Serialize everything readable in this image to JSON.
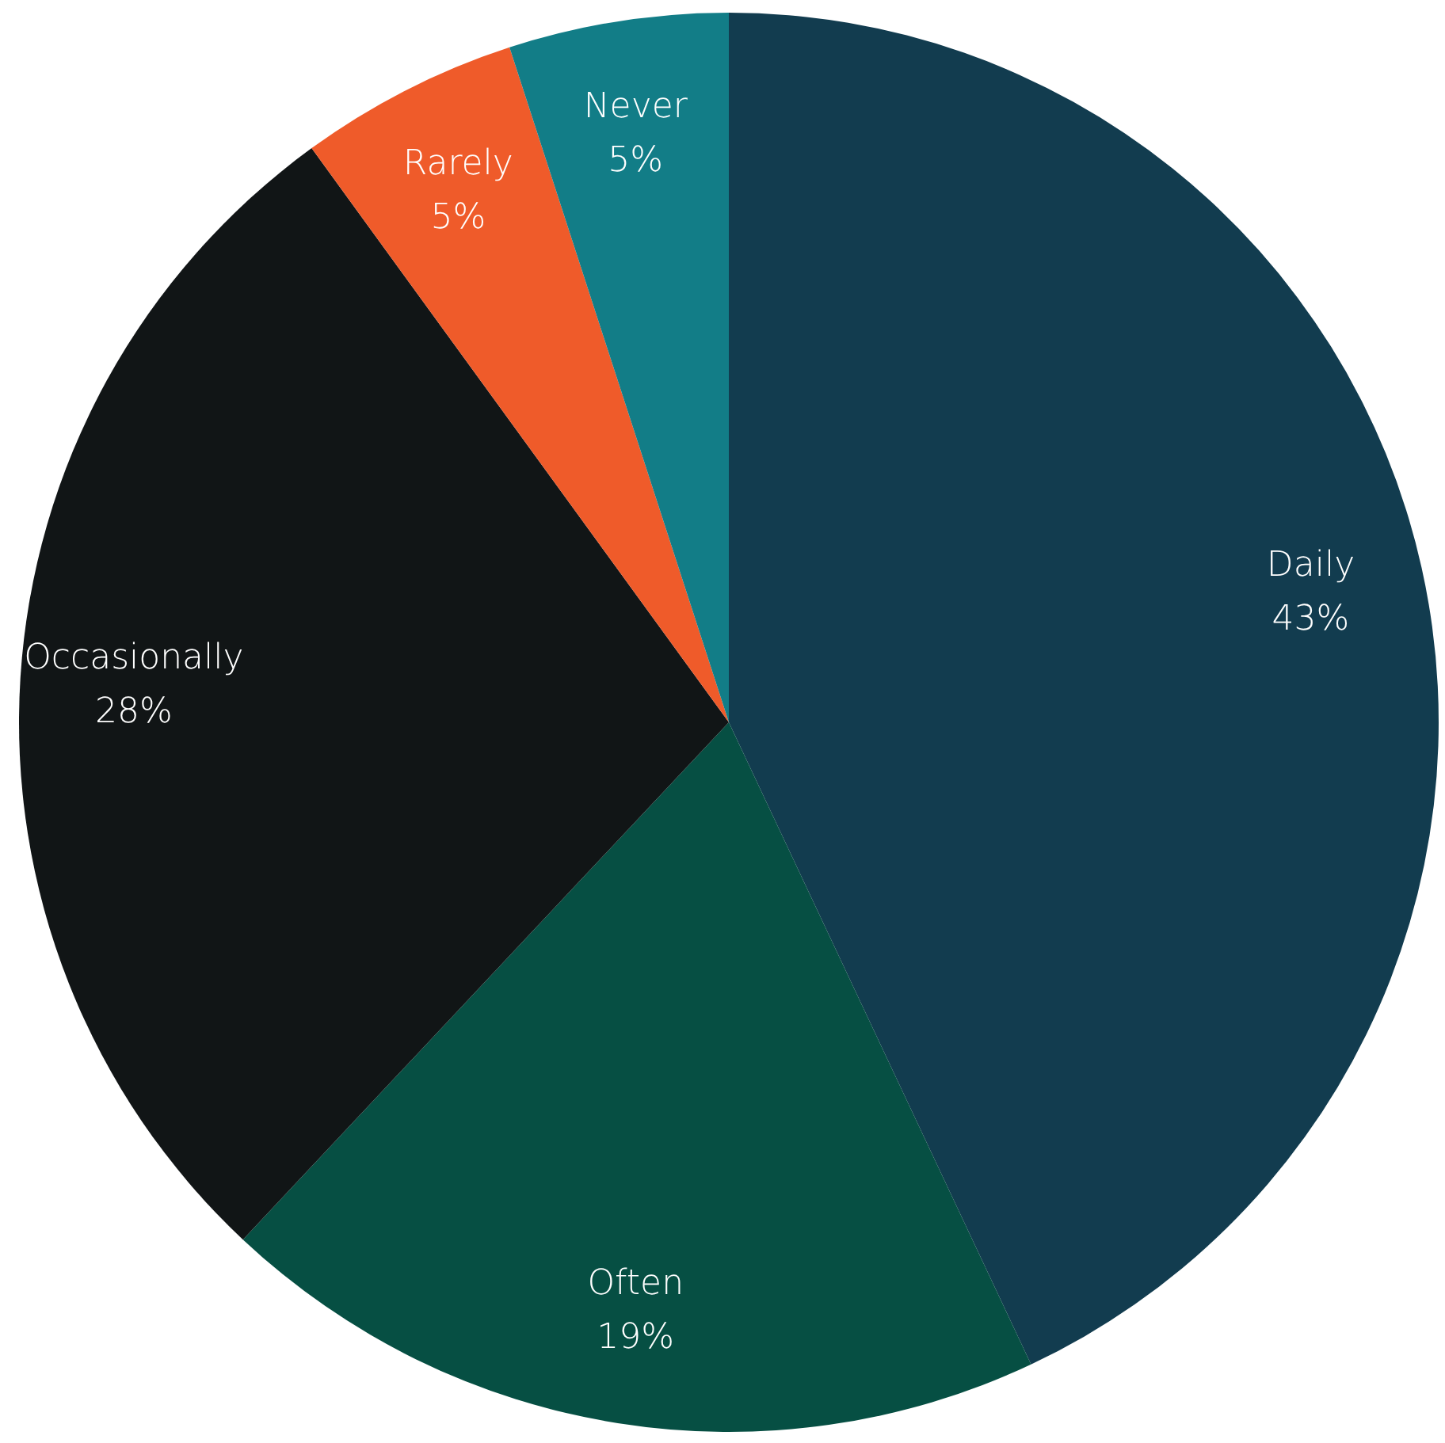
{
  "chart_data": {
    "type": "pie",
    "categories": [
      "Daily",
      "Often",
      "Occasionally",
      "Rarely",
      "Never"
    ],
    "values": [
      43,
      19,
      28,
      5,
      5
    ],
    "value_labels": [
      "43%",
      "19%",
      "28%",
      "5%",
      "5%"
    ],
    "colors": [
      "#123c4f",
      "#064f43",
      "#111516",
      "#ef5b2a",
      "#127d87"
    ],
    "legend": false
  }
}
